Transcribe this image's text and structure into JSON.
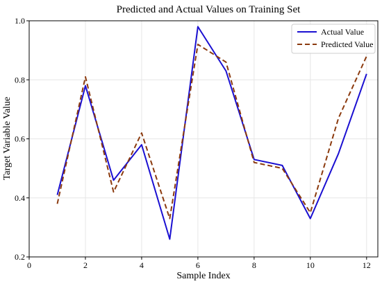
{
  "chart_data": {
    "type": "line",
    "title": "Predicted and Actual Values on Training Set",
    "xlabel": "Sample Index",
    "ylabel": "Target Variable Value",
    "xlim": [
      0,
      12.4
    ],
    "ylim": [
      0.2,
      1.0
    ],
    "xticks": [
      0,
      2,
      4,
      6,
      8,
      10,
      12
    ],
    "yticks": [
      0.2,
      0.4,
      0.6,
      0.8,
      1.0
    ],
    "grid": true,
    "legend_position": "top-right",
    "series": [
      {
        "name": "Actual Value",
        "style": "solid",
        "color": "#1a0fd1",
        "x": [
          1,
          2,
          3,
          4,
          5,
          6,
          7,
          8,
          9,
          10,
          11,
          12
        ],
        "values": [
          0.41,
          0.78,
          0.46,
          0.58,
          0.26,
          0.98,
          0.83,
          0.53,
          0.51,
          0.33,
          0.55,
          0.82
        ]
      },
      {
        "name": "Predicted Value",
        "style": "dashed",
        "color": "#8b3a0e",
        "x": [
          1,
          2,
          3,
          4,
          5,
          6,
          7,
          8,
          9,
          10,
          11,
          12
        ],
        "values": [
          0.38,
          0.81,
          0.42,
          0.62,
          0.33,
          0.92,
          0.86,
          0.52,
          0.5,
          0.35,
          0.67,
          0.88
        ]
      }
    ]
  }
}
